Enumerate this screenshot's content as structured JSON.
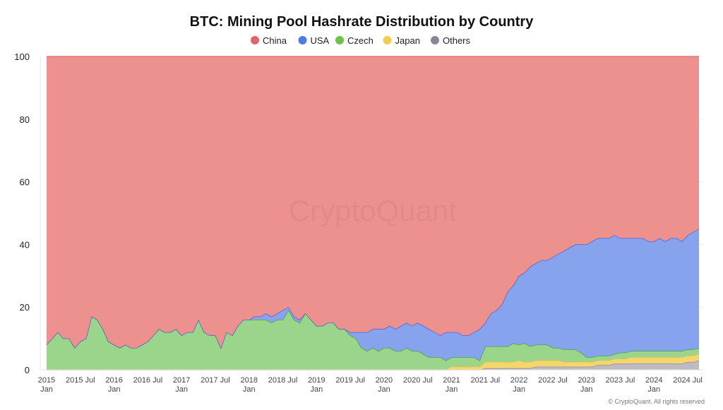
{
  "chart_data": {
    "type": "area",
    "stacked": true,
    "title": "BTC: Mining Pool Hashrate Distribution by Country",
    "xlabel": "",
    "ylabel": "",
    "ylim": [
      0,
      100
    ],
    "yticks": [
      "0",
      "20",
      "40",
      "60",
      "80",
      "100"
    ],
    "xticks": [
      [
        "2015",
        "Jan"
      ],
      [
        "2015 Jul",
        ""
      ],
      [
        "2016",
        "Jan"
      ],
      [
        "2016 Jul",
        ""
      ],
      [
        "2017",
        "Jan"
      ],
      [
        "2017 Jul",
        ""
      ],
      [
        "2018",
        "Jan"
      ],
      [
        "2018 Jul",
        ""
      ],
      [
        "2019",
        "Jan"
      ],
      [
        "2019 Jul",
        ""
      ],
      [
        "2020",
        "Jan"
      ],
      [
        "2020 Jul",
        ""
      ],
      [
        "2021",
        "Jan"
      ],
      [
        "2021 Jul",
        ""
      ],
      [
        "2022",
        "Jan"
      ],
      [
        "2022 Jul",
        ""
      ],
      [
        "2023",
        "Jan"
      ],
      [
        "2023 Jul",
        ""
      ],
      [
        "2024",
        "Jan"
      ],
      [
        "2024 Jul",
        ""
      ]
    ],
    "x_start": "2015-01",
    "x_end": "2024-09",
    "x_step": "month",
    "grid": true,
    "legend_position": "top-center",
    "watermark": "CryptoQuant",
    "copyright": "© CryptoQuant. All rights reserved",
    "series": [
      {
        "name": "Others",
        "fill": "#BDBAC3",
        "line": "#8E8A93",
        "dot": "#8A8892",
        "values": [
          0,
          0,
          0,
          0,
          0,
          0,
          0,
          0,
          0,
          0,
          0,
          0,
          0,
          0,
          0,
          0,
          0,
          0,
          0,
          0,
          0,
          0,
          0,
          0,
          0,
          0,
          0,
          0,
          0,
          0,
          0,
          0,
          0,
          0,
          0,
          0,
          0,
          0,
          0,
          0,
          0,
          0,
          0,
          0,
          0,
          0,
          0,
          0,
          0,
          0,
          0,
          0,
          0,
          0,
          0,
          0,
          0,
          0,
          0,
          0,
          0,
          0,
          0,
          0,
          0,
          0,
          0,
          0,
          0,
          0,
          0,
          0,
          0,
          0,
          0,
          0,
          0,
          0,
          0.5,
          0.5,
          0.5,
          0.5,
          0.5,
          0.5,
          0.5,
          0.5,
          0.5,
          1,
          1,
          1,
          1,
          1,
          1,
          1,
          1,
          1,
          1,
          1,
          1.5,
          1.5,
          1.5,
          2,
          2,
          2,
          2,
          2,
          2,
          2,
          2,
          2,
          2,
          2,
          2,
          2,
          2.5,
          2.5,
          3
        ]
      },
      {
        "name": "Japan",
        "fill": "#F5D56E",
        "line": "#E9C23E",
        "dot": "#F2CC4B",
        "values": [
          0,
          0,
          0,
          0,
          0,
          0,
          0,
          0,
          0,
          0,
          0,
          0,
          0,
          0,
          0,
          0,
          0,
          0,
          0,
          0,
          0,
          0,
          0,
          0,
          0,
          0,
          0,
          0,
          0,
          0,
          0,
          0,
          0,
          0,
          0,
          0,
          0,
          0,
          0,
          0,
          0,
          0,
          0,
          0,
          0,
          0,
          0,
          0,
          0,
          0,
          0,
          0,
          0,
          0,
          0,
          0,
          0,
          0,
          0,
          0,
          0,
          0,
          0,
          0,
          0,
          0,
          0,
          0,
          0,
          0,
          0,
          0,
          1,
          1,
          1,
          1,
          1,
          1,
          2,
          2,
          2,
          2,
          2,
          2,
          2.5,
          2,
          2,
          2,
          2,
          2,
          2,
          2,
          1.5,
          1.5,
          1.5,
          1.5,
          1.5,
          1.5,
          1.5,
          1.5,
          1.5,
          1.5,
          1.5,
          1.5,
          2,
          2,
          2,
          2,
          2,
          2,
          2,
          2,
          2,
          2,
          2,
          2,
          2
        ]
      },
      {
        "name": "Czech",
        "fill": "#9BD48B",
        "line": "#3E9A3B",
        "dot": "#6CC24A",
        "values": [
          8,
          10,
          12,
          10,
          10,
          7,
          9,
          10,
          17,
          16,
          13,
          9,
          8,
          7,
          8,
          7,
          7,
          8,
          9,
          11,
          13,
          12,
          12,
          13,
          11,
          12,
          12,
          16,
          12,
          11,
          11,
          7,
          12,
          11,
          14,
          16,
          16,
          16,
          16,
          16,
          15,
          16,
          16,
          19,
          16,
          15,
          18,
          16,
          14,
          14,
          15,
          15,
          13,
          13,
          11,
          10,
          7,
          6,
          7,
          6,
          7,
          7,
          6,
          6,
          7,
          6,
          6,
          5,
          4,
          4,
          4,
          3,
          3,
          3,
          3,
          3,
          3,
          2,
          5,
          5,
          5,
          5,
          5,
          6,
          5,
          6,
          5,
          5,
          5,
          5,
          4,
          4,
          4,
          4,
          4,
          3,
          1.5,
          1.5,
          1.5,
          1.5,
          1.5,
          1.5,
          2,
          2,
          2,
          2,
          2,
          2,
          2,
          2,
          2,
          2,
          2,
          2,
          2,
          2,
          2
        ]
      },
      {
        "name": "USA",
        "fill": "#87A3EE",
        "line": "#3B5BD5",
        "dot": "#4F7CE0",
        "values": [
          0,
          0,
          0,
          0,
          0,
          0,
          0,
          0,
          0,
          0,
          0,
          0,
          0,
          0,
          0,
          0,
          0,
          0,
          0,
          0,
          0,
          0,
          0,
          0,
          0,
          0,
          0,
          0,
          0,
          0,
          0,
          0,
          0,
          0,
          0,
          0,
          0,
          1,
          1,
          2,
          2,
          2,
          3,
          1,
          1,
          1,
          0,
          0,
          0,
          0,
          0,
          0,
          0,
          0,
          1,
          2,
          5,
          6,
          6,
          7,
          6,
          7,
          7,
          8,
          8,
          8,
          9,
          9,
          9,
          8,
          7,
          9,
          8,
          8,
          7,
          7,
          8,
          10,
          7.5,
          10.5,
          11.5,
          13.5,
          17.5,
          18.5,
          22,
          22.5,
          25.5,
          26,
          27,
          27,
          29,
          30,
          31.5,
          32.5,
          33.5,
          34.5,
          36,
          37,
          37.5,
          37.5,
          37.5,
          38,
          36.5,
          36.5,
          36,
          36,
          36,
          35,
          35,
          36,
          35,
          36,
          36,
          35,
          36.5,
          37.5,
          38
        ]
      },
      {
        "name": "China",
        "fill": "#EC918E",
        "line": "#E06A66",
        "dot": "#E06666",
        "remainder": true
      }
    ],
    "legend_order": [
      "China",
      "USA",
      "Czech",
      "Japan",
      "Others"
    ]
  }
}
